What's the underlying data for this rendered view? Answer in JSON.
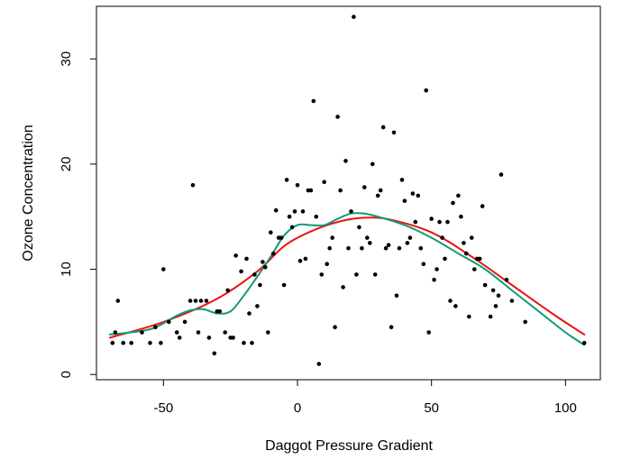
{
  "chart_data": {
    "type": "scatter",
    "title": "",
    "xlabel": "Daggot Pressure Gradient",
    "ylabel": "Ozone Concentration",
    "xlim": [
      -75,
      113
    ],
    "ylim": [
      -0.5,
      35
    ],
    "x_ticks": [
      -50,
      0,
      50,
      100
    ],
    "y_ticks": [
      0,
      10,
      20,
      30
    ],
    "x_tick_labels": [
      "-50",
      "0",
      "50",
      "100"
    ],
    "y_tick_labels": [
      "0",
      "10",
      "20",
      "30"
    ],
    "grid": false,
    "legend": "none",
    "points": [
      [
        -69,
        3
      ],
      [
        -68,
        4
      ],
      [
        -67,
        7
      ],
      [
        -65,
        3
      ],
      [
        -62,
        3
      ],
      [
        -58,
        4
      ],
      [
        -55,
        3
      ],
      [
        -53,
        4.5
      ],
      [
        -51,
        3
      ],
      [
        -50,
        10
      ],
      [
        -48,
        5
      ],
      [
        -45,
        4
      ],
      [
        -44,
        3.5
      ],
      [
        -42,
        5
      ],
      [
        -40,
        7
      ],
      [
        -39,
        18
      ],
      [
        -38,
        7
      ],
      [
        -37,
        4
      ],
      [
        -36,
        7
      ],
      [
        -34,
        7
      ],
      [
        -33,
        3.5
      ],
      [
        -31,
        2
      ],
      [
        -30,
        6
      ],
      [
        -29,
        6
      ],
      [
        -27,
        4
      ],
      [
        -26,
        8
      ],
      [
        -25,
        3.5
      ],
      [
        -24,
        3.5
      ],
      [
        -23,
        11.3
      ],
      [
        -21,
        9.8
      ],
      [
        -20,
        3
      ],
      [
        -19,
        11
      ],
      [
        -18,
        5.8
      ],
      [
        -17,
        3
      ],
      [
        -16,
        9.5
      ],
      [
        -15,
        6.5
      ],
      [
        -14,
        8.5
      ],
      [
        -13,
        10.7
      ],
      [
        -12,
        10.2
      ],
      [
        -11,
        4
      ],
      [
        -10,
        13.5
      ],
      [
        -9,
        11.5
      ],
      [
        -8,
        15.6
      ],
      [
        -7,
        13
      ],
      [
        -6,
        13
      ],
      [
        -5,
        8.5
      ],
      [
        -4,
        18.5
      ],
      [
        -3,
        15
      ],
      [
        -2,
        14
      ],
      [
        -1,
        15.5
      ],
      [
        0,
        18
      ],
      [
        1,
        10.8
      ],
      [
        2,
        15.5
      ],
      [
        3,
        11
      ],
      [
        4,
        17.5
      ],
      [
        5,
        17.5
      ],
      [
        6,
        26
      ],
      [
        7,
        15
      ],
      [
        8,
        1
      ],
      [
        9,
        9.5
      ],
      [
        10,
        18.3
      ],
      [
        11,
        10.5
      ],
      [
        12,
        12
      ],
      [
        13,
        13
      ],
      [
        14,
        4.5
      ],
      [
        15,
        24.5
      ],
      [
        16,
        17.5
      ],
      [
        17,
        8.3
      ],
      [
        18,
        20.3
      ],
      [
        19,
        12
      ],
      [
        20,
        15.5
      ],
      [
        21,
        34
      ],
      [
        22,
        9.5
      ],
      [
        23,
        14
      ],
      [
        24,
        12
      ],
      [
        25,
        17.8
      ],
      [
        26,
        13
      ],
      [
        27,
        12.5
      ],
      [
        28,
        20
      ],
      [
        29,
        9.5
      ],
      [
        30,
        17
      ],
      [
        31,
        17.5
      ],
      [
        32,
        23.5
      ],
      [
        33,
        12
      ],
      [
        34,
        12.3
      ],
      [
        35,
        4.5
      ],
      [
        36,
        23
      ],
      [
        37,
        7.5
      ],
      [
        38,
        12
      ],
      [
        39,
        18.5
      ],
      [
        40,
        16.5
      ],
      [
        41,
        12.5
      ],
      [
        42,
        13
      ],
      [
        43,
        17.2
      ],
      [
        44,
        14.5
      ],
      [
        45,
        17
      ],
      [
        46,
        12
      ],
      [
        47,
        10.5
      ],
      [
        48,
        27
      ],
      [
        49,
        4
      ],
      [
        50,
        14.8
      ],
      [
        51,
        9
      ],
      [
        52,
        10
      ],
      [
        53,
        14.5
      ],
      [
        54,
        13
      ],
      [
        55,
        11
      ],
      [
        56,
        14.5
      ],
      [
        57,
        7
      ],
      [
        58,
        16.3
      ],
      [
        59,
        6.5
      ],
      [
        60,
        17
      ],
      [
        61,
        15
      ],
      [
        62,
        12.5
      ],
      [
        63,
        11.5
      ],
      [
        64,
        5.5
      ],
      [
        65,
        13
      ],
      [
        66,
        10
      ],
      [
        67,
        11
      ],
      [
        68,
        11
      ],
      [
        69,
        16
      ],
      [
        70,
        8.5
      ],
      [
        72,
        5.5
      ],
      [
        73,
        8
      ],
      [
        74,
        6.5
      ],
      [
        75,
        7.5
      ],
      [
        76,
        19
      ],
      [
        78,
        9
      ],
      [
        80,
        7
      ],
      [
        85,
        5
      ],
      [
        107,
        3
      ]
    ],
    "series": [
      {
        "kind": "smooth-fit",
        "color": "#ee1111",
        "x": [
          -70,
          -50,
          -30,
          -15,
          -5,
          5,
          15,
          25,
          35,
          50,
          65,
          80,
          95,
          107
        ],
        "y": [
          3.5,
          5.0,
          7.2,
          9.8,
          12.2,
          13.6,
          14.5,
          14.9,
          14.7,
          13.5,
          11.2,
          8.5,
          5.8,
          3.8
        ]
      },
      {
        "kind": "smooth-fit",
        "color": "#119977",
        "x": [
          -70,
          -55,
          -45,
          -40,
          -35,
          -30,
          -25,
          -20,
          -15,
          -10,
          -5,
          0,
          5,
          10,
          15,
          20,
          25,
          30,
          40,
          50,
          60,
          70,
          80,
          90,
          100,
          107
        ],
        "y": [
          3.8,
          4.3,
          5.6,
          6.1,
          6.2,
          5.8,
          6.0,
          7.5,
          9.3,
          11.2,
          13.2,
          14.2,
          14.2,
          14.2,
          14.8,
          15.3,
          15.3,
          15.0,
          14.2,
          13.0,
          11.5,
          10.0,
          8.0,
          6.0,
          4.0,
          2.8
        ]
      }
    ]
  }
}
